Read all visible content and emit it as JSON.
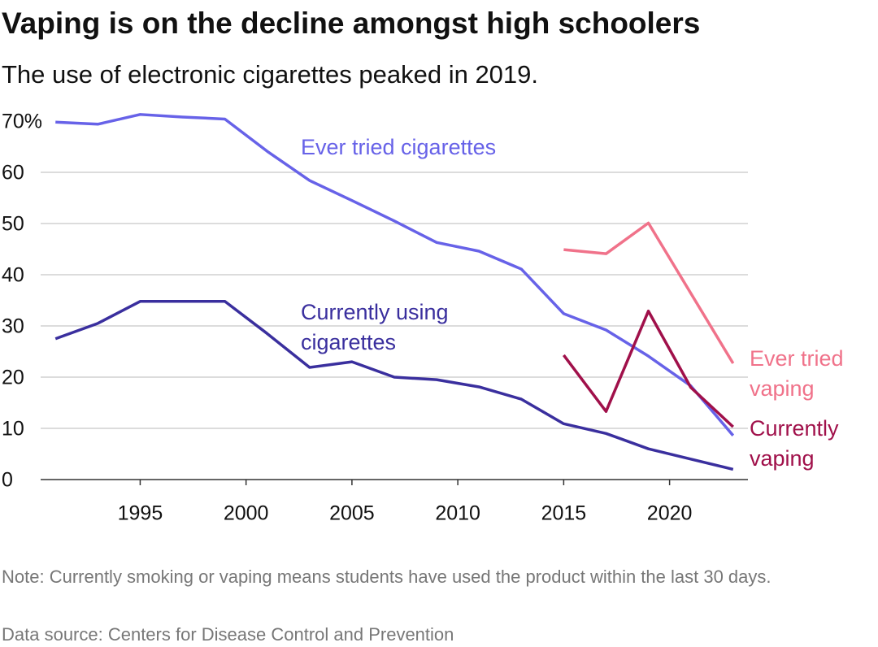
{
  "chart_data": {
    "type": "line",
    "title": "Vaping is on the decline amongst high schoolers",
    "subtitle": "The use of electronic cigarettes peaked in 2019.",
    "note": "Note: Currently smoking or vaping means students have used the product within the last 30 days.",
    "source": "Data source: Centers for Disease Control and Prevention",
    "x": [
      1991,
      1993,
      1995,
      1997,
      1999,
      2001,
      2003,
      2005,
      2007,
      2009,
      2011,
      2013,
      2015,
      2017,
      2019,
      2021,
      2023
    ],
    "xlim": [
      1990.3,
      2023.7
    ],
    "xticks": [
      1995,
      2000,
      2005,
      2010,
      2015,
      2020
    ],
    "ylim": [
      0,
      75
    ],
    "yticks": [
      0,
      10,
      20,
      30,
      40,
      50,
      60,
      {
        "value": 70,
        "label": "70%"
      }
    ],
    "grid": true,
    "series": [
      {
        "name": "Ever tried cigarettes",
        "color": "#6762e8",
        "values": [
          69.8,
          69.4,
          71.3,
          70.8,
          70.4,
          64.1,
          58.4,
          54.5,
          50.5,
          46.3,
          44.6,
          41.1,
          32.4,
          29.2,
          24.1,
          18.3,
          8.6
        ]
      },
      {
        "name": "Currently using cigarettes",
        "color": "#3a2f9e",
        "values": [
          27.5,
          30.5,
          34.8,
          34.8,
          34.8,
          28.5,
          21.9,
          23.0,
          20.0,
          19.5,
          18.1,
          15.7,
          10.9,
          9.0,
          6.0,
          4.0,
          2.0
        ]
      },
      {
        "name": "Ever tried vaping",
        "color": "#f0728a",
        "x": [
          2015,
          2017,
          2019,
          2023
        ],
        "values": [
          44.9,
          44.1,
          50.1,
          22.7
        ]
      },
      {
        "name": "Currently vaping",
        "color": "#a0104a",
        "x": [
          2015,
          2017,
          2019,
          2021,
          2023
        ],
        "values": [
          24.3,
          13.3,
          32.9,
          18.0,
          10.3
        ]
      }
    ]
  }
}
